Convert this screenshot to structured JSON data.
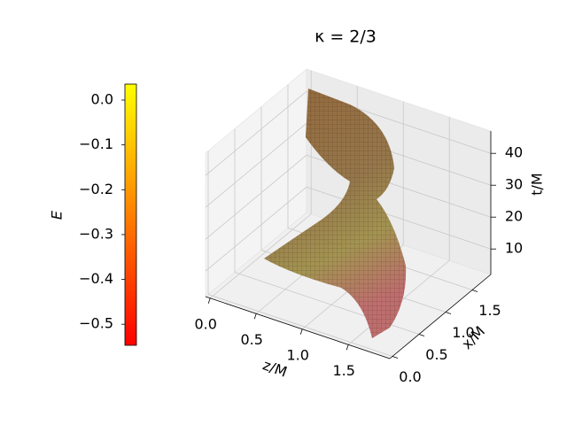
{
  "chart_data": {
    "type": "surface3d",
    "title": "κ = 2/3",
    "xlabel": "z/M",
    "ylabel": "x/M",
    "zlabel": "t/M",
    "xlim": [
      -0.05,
      1.95
    ],
    "xticks": [
      {
        "value": 0,
        "label": "0.0"
      },
      0.5,
      {
        "value": 1,
        "label": "1.0"
      },
      1.5
    ],
    "ylim": [
      -0.05,
      1.85
    ],
    "yticks": [
      {
        "value": 0,
        "label": "0.0"
      },
      0.5,
      {
        "value": 1,
        "label": "1.0"
      },
      1.5
    ],
    "zlim": [
      2,
      47
    ],
    "zticks": [
      10,
      20,
      30,
      40
    ],
    "grid": true,
    "colorbar": {
      "label": "E",
      "lim": [
        -0.547,
        0.0356
      ],
      "colors": [
        "#ff0000",
        "#ffff00"
      ],
      "ticks": [
        {
          "value": 0,
          "label": "0.0"
        },
        {
          "value": -0.1,
          "label": "−0.1"
        },
        {
          "value": -0.2,
          "label": "−0.2"
        },
        {
          "value": -0.3,
          "label": "−0.3"
        },
        {
          "value": -0.4,
          "label": "−0.4"
        },
        {
          "value": -0.5,
          "label": "−0.5"
        }
      ]
    }
  }
}
